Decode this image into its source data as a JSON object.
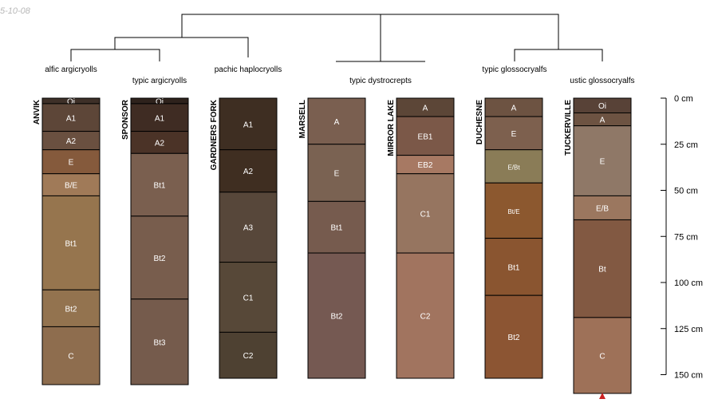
{
  "date_stamp": "5-10-08",
  "classes": [
    {
      "id": "c1",
      "label": "alfic argicryolls"
    },
    {
      "id": "c2",
      "label": "typic argicryolls"
    },
    {
      "id": "c3",
      "label": "pachic haplocryolls"
    },
    {
      "id": "c4",
      "label": "typic dystrocrepts"
    },
    {
      "id": "c5",
      "label": "typic glossocryalfs"
    },
    {
      "id": "c6",
      "label": "ustic glossocryalfs"
    }
  ],
  "depth_scale": {
    "unit": "cm",
    "ticks": [
      {
        "value": 0,
        "label": "0 cm"
      },
      {
        "value": 25,
        "label": "25 cm"
      },
      {
        "value": 50,
        "label": "50 cm"
      },
      {
        "value": 75,
        "label": "75 cm"
      },
      {
        "value": 100,
        "label": "100 cm"
      },
      {
        "value": 125,
        "label": "125 cm"
      },
      {
        "value": 150,
        "label": "150 cm"
      }
    ]
  },
  "profiles": [
    {
      "name": "ANVIK",
      "horizons": [
        {
          "name": "Oi",
          "top": 0,
          "bottom": 3,
          "color": "#3e3028"
        },
        {
          "name": "A1",
          "top": 3,
          "bottom": 18,
          "color": "#5d4638"
        },
        {
          "name": "A2",
          "top": 18,
          "bottom": 28,
          "color": "#6a5040"
        },
        {
          "name": "E",
          "top": 28,
          "bottom": 41,
          "color": "#855a3c"
        },
        {
          "name": "B/E",
          "top": 41,
          "bottom": 53,
          "color": "#a07a58"
        },
        {
          "name": "Bt1",
          "top": 53,
          "bottom": 104,
          "color": "#96754e"
        },
        {
          "name": "Bt2",
          "top": 104,
          "bottom": 124,
          "color": "#93734f"
        },
        {
          "name": "C",
          "top": 124,
          "bottom": 155,
          "color": "#8e6d4e"
        }
      ]
    },
    {
      "name": "SPONSOR",
      "horizons": [
        {
          "name": "Oi",
          "top": 0,
          "bottom": 3,
          "color": "#2e221c"
        },
        {
          "name": "A1",
          "top": 3,
          "bottom": 18,
          "color": "#3f2c23"
        },
        {
          "name": "A2",
          "top": 18,
          "bottom": 30,
          "color": "#4b3327"
        },
        {
          "name": "Bt1",
          "top": 30,
          "bottom": 64,
          "color": "#7a5f4f"
        },
        {
          "name": "Bt2",
          "top": 64,
          "bottom": 109,
          "color": "#785d4d"
        },
        {
          "name": "Bt3",
          "top": 109,
          "bottom": 155,
          "color": "#755b4c"
        }
      ]
    },
    {
      "name": "GARDNERS FORK",
      "horizons": [
        {
          "name": "A1",
          "top": 0,
          "bottom": 28,
          "color": "#3e2e22"
        },
        {
          "name": "A2",
          "top": 28,
          "bottom": 51,
          "color": "#3f2e21"
        },
        {
          "name": "A3",
          "top": 51,
          "bottom": 89,
          "color": "#57473a"
        },
        {
          "name": "C1",
          "top": 89,
          "bottom": 127,
          "color": "#574838"
        },
        {
          "name": "C2",
          "top": 127,
          "bottom": 152,
          "color": "#4e4132"
        }
      ]
    },
    {
      "name": "MARSELL",
      "horizons": [
        {
          "name": "A",
          "top": 0,
          "bottom": 25,
          "color": "#7a5f50"
        },
        {
          "name": "E",
          "top": 25,
          "bottom": 56,
          "color": "#7a6252"
        },
        {
          "name": "Bt1",
          "top": 56,
          "bottom": 84,
          "color": "#765b4e"
        },
        {
          "name": "Bt2",
          "top": 84,
          "bottom": 152,
          "color": "#755952"
        }
      ]
    },
    {
      "name": "MIRROR LAKE",
      "horizons": [
        {
          "name": "A",
          "top": 0,
          "bottom": 10,
          "color": "#5c4637"
        },
        {
          "name": "EB1",
          "top": 10,
          "bottom": 31,
          "color": "#7b5848"
        },
        {
          "name": "EB2",
          "top": 31,
          "bottom": 41,
          "color": "#a77963"
        },
        {
          "name": "C1",
          "top": 41,
          "bottom": 84,
          "color": "#967560"
        },
        {
          "name": "C2",
          "top": 84,
          "bottom": 152,
          "color": "#a1745f"
        }
      ]
    },
    {
      "name": "DUCHESNE",
      "horizons": [
        {
          "name": "A",
          "top": 0,
          "bottom": 10,
          "color": "#6d5342"
        },
        {
          "name": "E",
          "top": 10,
          "bottom": 28,
          "color": "#7d604e"
        },
        {
          "name": "E/Bt",
          "top": 28,
          "bottom": 46,
          "color": "#8a7c57"
        },
        {
          "name": "Bt/E",
          "top": 46,
          "bottom": 76,
          "color": "#8c582f"
        },
        {
          "name": "Bt1",
          "top": 76,
          "bottom": 107,
          "color": "#8a5530"
        },
        {
          "name": "Bt2",
          "top": 107,
          "bottom": 152,
          "color": "#8c5533"
        }
      ]
    },
    {
      "name": "TUCKERVILLE",
      "horizons": [
        {
          "name": "Oi",
          "top": 0,
          "bottom": 8,
          "color": "#584237"
        },
        {
          "name": "A",
          "top": 8,
          "bottom": 15,
          "color": "#6d5342"
        },
        {
          "name": "E",
          "top": 15,
          "bottom": 53,
          "color": "#8f7867"
        },
        {
          "name": "E/B",
          "top": 53,
          "bottom": 66,
          "color": "#9b775f"
        },
        {
          "name": "Bt",
          "top": 66,
          "bottom": 119,
          "color": "#825942"
        },
        {
          "name": "C",
          "top": 119,
          "bottom": 160,
          "color": "#9e7158"
        }
      ]
    }
  ]
}
